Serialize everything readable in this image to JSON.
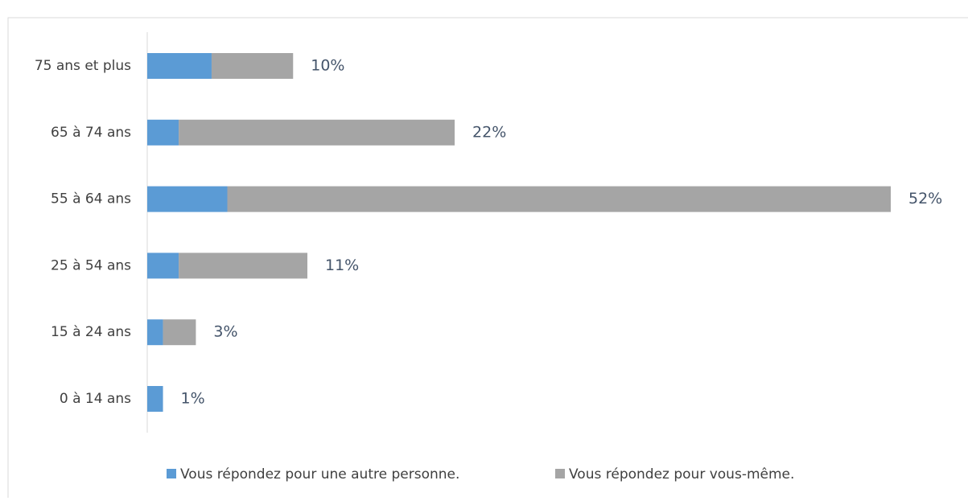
{
  "chart_data": {
    "type": "stacked-bar-horizontal",
    "categories": [
      "75 ans et plus",
      "65 à 74 ans",
      "55 à 64 ans",
      "25 à 54 ans",
      "15 à 24 ans",
      "0 à 14 ans"
    ],
    "series": [
      {
        "name": "Vous répondez pour une autre personne.",
        "color": "#5b9bd5",
        "values": [
          4.5,
          2.2,
          5.6,
          2.2,
          1.1,
          1.1
        ]
      },
      {
        "name": "Vous répondez pour vous-même.",
        "color": "#a5a5a5",
        "values": [
          5.7,
          19.3,
          46.4,
          9.0,
          2.3,
          0
        ]
      }
    ],
    "total_labels": [
      "10%",
      "22%",
      "52%",
      "11%",
      "3%",
      "1%"
    ],
    "xlim": [
      0,
      52
    ],
    "legend": "bottom"
  }
}
